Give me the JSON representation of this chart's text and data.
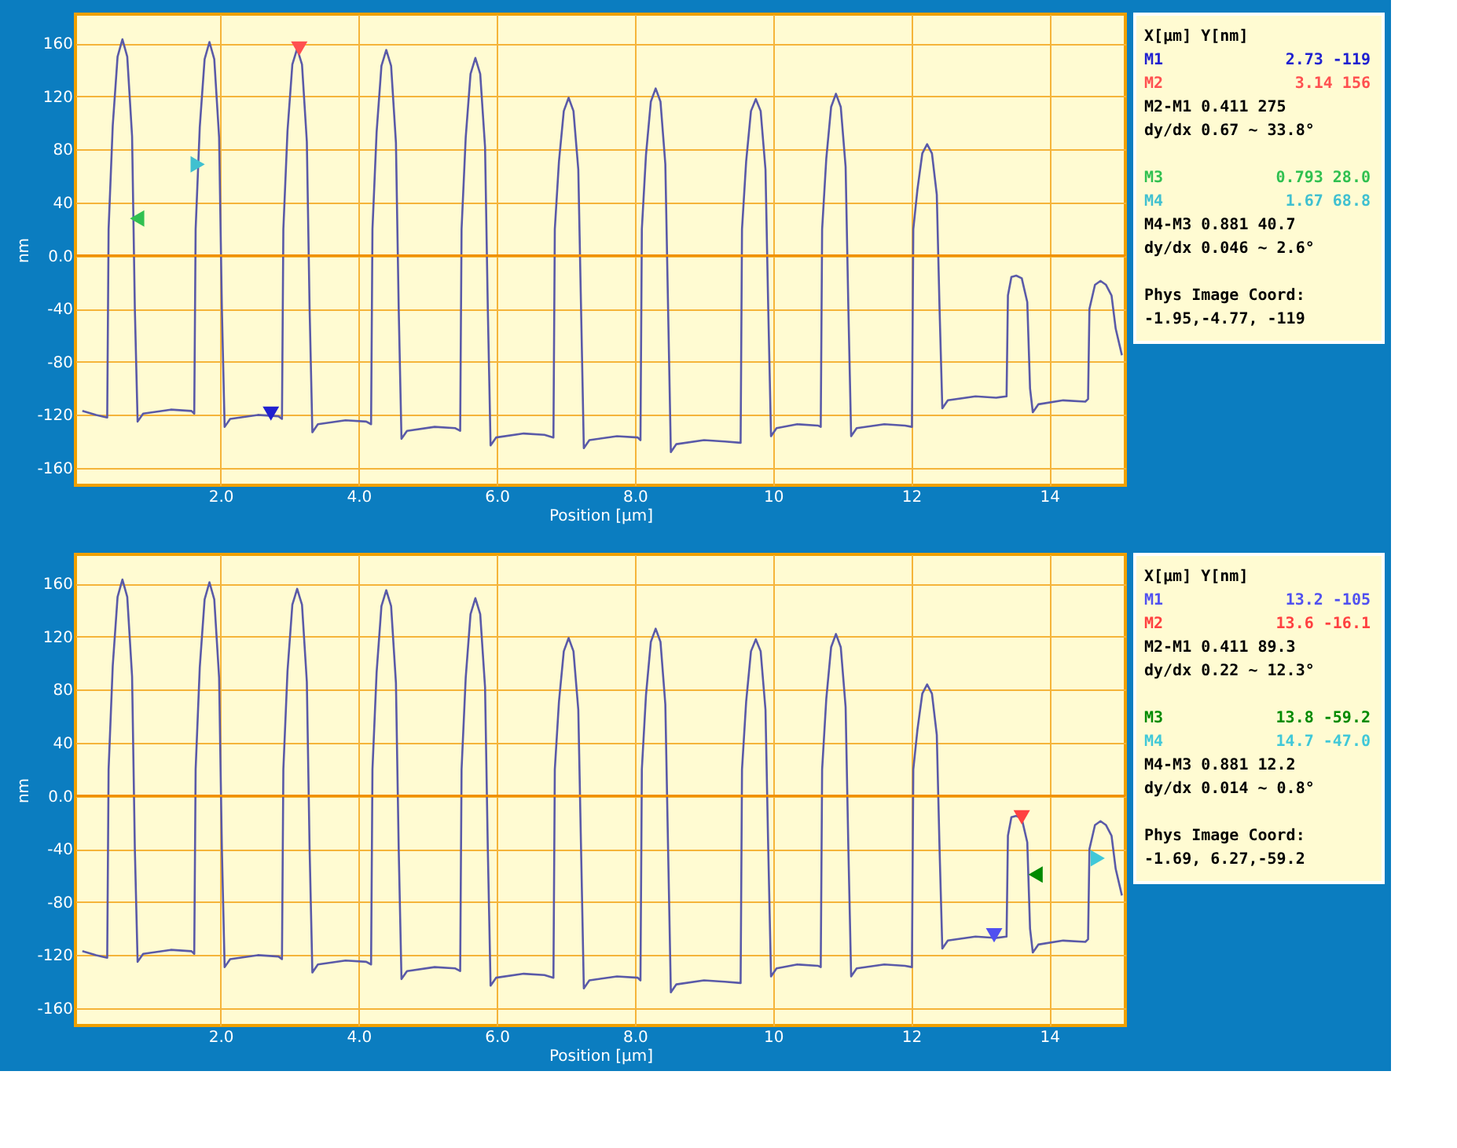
{
  "chart_data": [
    {
      "type": "line",
      "xlabel": "Position [µm]",
      "ylabel": "nm",
      "xlim": [
        -0.1,
        15.1
      ],
      "ylim": [
        -173,
        182
      ],
      "xticks": [
        {
          "value": 2,
          "label": "2.0"
        },
        {
          "value": 4,
          "label": "4.0"
        },
        {
          "value": 6,
          "label": "6.0"
        },
        {
          "value": 8,
          "label": "8.0"
        },
        10,
        12,
        14
      ],
      "yticks": [
        -160,
        -120,
        -80,
        -40,
        {
          "value": 0,
          "label": "0.0"
        },
        40,
        80,
        120,
        160
      ],
      "grid": true,
      "legend": "right",
      "line_style": "solid",
      "ref_lines": [
        {
          "axis": "y",
          "value": 0,
          "color": "#f09000"
        }
      ],
      "annotations": [
        "X[µm]  Y[nm]",
        "2.73  -119",
        "3.14  156",
        "M2-M1 0.411  275",
        "dy/dx 0.67 ~ 33.8°",
        "0.793  28.0",
        "1.67  68.8",
        "M4-M3 0.881  40.7",
        "dy/dx 0.046 ~ 2.6°",
        "Phys Image Coord:",
        "-1.95,-4.77, -119"
      ],
      "series": [
        {
          "type": "line",
          "color": "#5a5aa8",
          "x": [
            0.0,
            0.2,
            0.36,
            0.38,
            0.44,
            0.51,
            0.58,
            0.65,
            0.72,
            0.76,
            0.8,
            0.88,
            1.28,
            1.58,
            1.62,
            1.64,
            1.7,
            1.77,
            1.84,
            1.91,
            1.98,
            2.02,
            2.06,
            2.14,
            2.54,
            2.84,
            2.89,
            2.91,
            2.97,
            3.04,
            3.11,
            3.18,
            3.25,
            3.29,
            3.33,
            3.41,
            3.81,
            4.11,
            4.18,
            4.2,
            4.26,
            4.33,
            4.4,
            4.47,
            4.54,
            4.58,
            4.62,
            4.7,
            5.1,
            5.4,
            5.47,
            5.49,
            5.55,
            5.62,
            5.69,
            5.76,
            5.83,
            5.87,
            5.91,
            5.99,
            6.39,
            6.69,
            6.82,
            6.84,
            6.9,
            6.97,
            7.04,
            7.11,
            7.18,
            7.22,
            7.26,
            7.34,
            7.74,
            8.04,
            8.08,
            8.1,
            8.16,
            8.23,
            8.3,
            8.37,
            8.44,
            8.48,
            8.52,
            8.6,
            9.0,
            9.3,
            9.53,
            9.55,
            9.61,
            9.68,
            9.75,
            9.82,
            9.89,
            9.93,
            9.97,
            10.05,
            10.35,
            10.65,
            10.69,
            10.71,
            10.77,
            10.84,
            10.91,
            10.98,
            11.05,
            11.09,
            11.13,
            11.21,
            11.61,
            11.91,
            12.01,
            12.03,
            12.09,
            12.16,
            12.23,
            12.3,
            12.37,
            12.41,
            12.45,
            12.53,
            12.93,
            13.23,
            13.38,
            13.4,
            13.45,
            13.52,
            13.6,
            13.68,
            13.72,
            13.76,
            13.84,
            14.2,
            14.52,
            14.56,
            14.58,
            14.66,
            14.74,
            14.82,
            14.9,
            14.96,
            15.05
          ],
          "values": [
            -117,
            -120,
            -122,
            20,
            98,
            150,
            163,
            150,
            90,
            -40,
            -125,
            -119,
            -116,
            -117,
            -119,
            20,
            97,
            148,
            161,
            148,
            89,
            -40,
            -129,
            -123,
            -120,
            -121,
            -123,
            20,
            94,
            144,
            156,
            144,
            86,
            -40,
            -133,
            -127,
            -124,
            -125,
            -127,
            20,
            93,
            143,
            155,
            143,
            85,
            -40,
            -138,
            -132,
            -129,
            -130,
            -132,
            20,
            89,
            137,
            149,
            137,
            82,
            -40,
            -143,
            -137,
            -134,
            -135,
            -137,
            20,
            71,
            109,
            119,
            109,
            65,
            -40,
            -145,
            -139,
            -136,
            -137,
            -139,
            20,
            76,
            116,
            126,
            116,
            69,
            -40,
            -148,
            -142,
            -139,
            -140,
            -141,
            20,
            71,
            109,
            118,
            109,
            65,
            -40,
            -136,
            -130,
            -127,
            -128,
            -129,
            20,
            73,
            112,
            122,
            112,
            67,
            -40,
            -136,
            -130,
            -127,
            -128,
            -129,
            20,
            50,
            77,
            84,
            77,
            46,
            -40,
            -115,
            -109,
            -106,
            -107,
            -106,
            -30,
            -16,
            -15,
            -17,
            -35,
            -100,
            -118,
            -112,
            -109,
            -110,
            -108,
            -40,
            -22,
            -19,
            -22,
            -30,
            -55,
            -75
          ]
        },
        {
          "type": "scatter",
          "name": "M1",
          "marker": "triangle",
          "color": "#2020d0",
          "x": [
            2.73
          ],
          "values": [
            -119
          ]
        },
        {
          "type": "scatter",
          "name": "M2",
          "marker": "triangle",
          "color": "#ff5050",
          "x": [
            3.14
          ],
          "values": [
            156
          ]
        },
        {
          "type": "scatter",
          "name": "M3",
          "marker": "triangle",
          "color": "#30c050",
          "x": [
            0.793
          ],
          "values": [
            28.0
          ]
        },
        {
          "type": "scatter",
          "name": "M4",
          "marker": "triangle",
          "color": "#40c0d0",
          "x": [
            1.67
          ],
          "values": [
            68.8
          ]
        }
      ]
    },
    {
      "type": "line",
      "xlabel": "Position [µm]",
      "ylabel": "nm",
      "xlim": [
        -0.1,
        15.1
      ],
      "ylim": [
        -173,
        182
      ],
      "xticks": [
        {
          "value": 2,
          "label": "2.0"
        },
        {
          "value": 4,
          "label": "4.0"
        },
        {
          "value": 6,
          "label": "6.0"
        },
        {
          "value": 8,
          "label": "8.0"
        },
        10,
        12,
        14
      ],
      "yticks": [
        -160,
        -120,
        -80,
        -40,
        {
          "value": 0,
          "label": "0.0"
        },
        40,
        80,
        120,
        160
      ],
      "grid": true,
      "legend": "right",
      "line_style": "solid",
      "ref_lines": [
        {
          "axis": "y",
          "value": 0,
          "color": "#f09000"
        }
      ],
      "annotations": [
        "X[µm]  Y[nm]",
        "13.2  -105",
        "13.6  -16.1",
        "M2-M1 0.411  89.3",
        "dy/dx 0.22 ~ 12.3°",
        "13.8  -59.2",
        "14.7  -47.0",
        "M4-M3 0.881  12.2",
        "dy/dx 0.014 ~ 0.8°",
        "Phys Image Coord:",
        "-1.69, 6.27,-59.2"
      ],
      "series": [
        {
          "type": "line",
          "color": "#5a5aa8",
          "x": [
            0.0,
            0.2,
            0.36,
            0.38,
            0.44,
            0.51,
            0.58,
            0.65,
            0.72,
            0.76,
            0.8,
            0.88,
            1.28,
            1.58,
            1.62,
            1.64,
            1.7,
            1.77,
            1.84,
            1.91,
            1.98,
            2.02,
            2.06,
            2.14,
            2.54,
            2.84,
            2.89,
            2.91,
            2.97,
            3.04,
            3.11,
            3.18,
            3.25,
            3.29,
            3.33,
            3.41,
            3.81,
            4.11,
            4.18,
            4.2,
            4.26,
            4.33,
            4.4,
            4.47,
            4.54,
            4.58,
            4.62,
            4.7,
            5.1,
            5.4,
            5.47,
            5.49,
            5.55,
            5.62,
            5.69,
            5.76,
            5.83,
            5.87,
            5.91,
            5.99,
            6.39,
            6.69,
            6.82,
            6.84,
            6.9,
            6.97,
            7.04,
            7.11,
            7.18,
            7.22,
            7.26,
            7.34,
            7.74,
            8.04,
            8.08,
            8.1,
            8.16,
            8.23,
            8.3,
            8.37,
            8.44,
            8.48,
            8.52,
            8.6,
            9.0,
            9.3,
            9.53,
            9.55,
            9.61,
            9.68,
            9.75,
            9.82,
            9.89,
            9.93,
            9.97,
            10.05,
            10.35,
            10.65,
            10.69,
            10.71,
            10.77,
            10.84,
            10.91,
            10.98,
            11.05,
            11.09,
            11.13,
            11.21,
            11.61,
            11.91,
            12.01,
            12.03,
            12.09,
            12.16,
            12.23,
            12.3,
            12.37,
            12.41,
            12.45,
            12.53,
            12.93,
            13.23,
            13.38,
            13.4,
            13.45,
            13.52,
            13.6,
            13.68,
            13.72,
            13.76,
            13.84,
            14.2,
            14.52,
            14.56,
            14.58,
            14.66,
            14.74,
            14.82,
            14.9,
            14.96,
            15.05
          ],
          "values": [
            -117,
            -120,
            -122,
            20,
            98,
            150,
            163,
            150,
            90,
            -40,
            -125,
            -119,
            -116,
            -117,
            -119,
            20,
            97,
            148,
            161,
            148,
            89,
            -40,
            -129,
            -123,
            -120,
            -121,
            -123,
            20,
            94,
            144,
            156,
            144,
            86,
            -40,
            -133,
            -127,
            -124,
            -125,
            -127,
            20,
            93,
            143,
            155,
            143,
            85,
            -40,
            -138,
            -132,
            -129,
            -130,
            -132,
            20,
            89,
            137,
            149,
            137,
            82,
            -40,
            -143,
            -137,
            -134,
            -135,
            -137,
            20,
            71,
            109,
            119,
            109,
            65,
            -40,
            -145,
            -139,
            -136,
            -137,
            -139,
            20,
            76,
            116,
            126,
            116,
            69,
            -40,
            -148,
            -142,
            -139,
            -140,
            -141,
            20,
            71,
            109,
            118,
            109,
            65,
            -40,
            -136,
            -130,
            -127,
            -128,
            -129,
            20,
            73,
            112,
            122,
            112,
            67,
            -40,
            -136,
            -130,
            -127,
            -128,
            -129,
            20,
            50,
            77,
            84,
            77,
            46,
            -40,
            -115,
            -109,
            -106,
            -107,
            -106,
            -30,
            -16,
            -15,
            -17,
            -35,
            -100,
            -118,
            -112,
            -109,
            -110,
            -108,
            -40,
            -22,
            -19,
            -22,
            -30,
            -55,
            -75
          ]
        },
        {
          "type": "scatter",
          "name": "M1",
          "marker": "triangle",
          "color": "#5050f0",
          "x": [
            13.2
          ],
          "values": [
            -105
          ]
        },
        {
          "type": "scatter",
          "name": "M2",
          "marker": "triangle",
          "color": "#ff4040",
          "x": [
            13.6
          ],
          "values": [
            -16.1
          ]
        },
        {
          "type": "scatter",
          "name": "M3",
          "marker": "triangle",
          "color": "#008a00",
          "x": [
            13.8
          ],
          "values": [
            -59.2
          ]
        },
        {
          "type": "scatter",
          "name": "M4",
          "marker": "triangle",
          "color": "#40c8d8",
          "x": [
            14.7
          ],
          "values": [
            -47.0
          ]
        }
      ]
    }
  ]
}
